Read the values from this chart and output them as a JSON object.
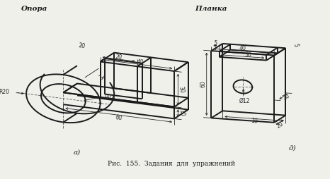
{
  "bg_color": "#f0f0eb",
  "line_color": "#1a1a1a",
  "dim_color": "#2a2a2a",
  "title_a": "Опора",
  "title_b": "Планка",
  "label_a": "а)",
  "label_b": "д)",
  "caption": "Рис.  155.  Задания  для  упражнений",
  "lw": 1.4,
  "lw_thin": 0.6,
  "lw_dim": 0.6
}
